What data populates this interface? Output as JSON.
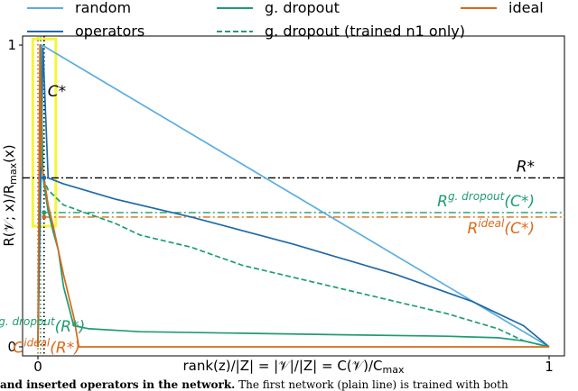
{
  "chart_data": {
    "type": "line",
    "xlabel": "rank(z)/|Ζ| = |𝒱|/|Ζ| = C(𝒱)/C",
    "xlabel_sub": "max",
    "ylabel": "R(𝒱; x)/R",
    "ylabel_sub": "max",
    "ylabel_tail": "(x)",
    "xlim": [
      -0.03,
      1.03
    ],
    "ylim": [
      -0.03,
      1.03
    ],
    "xticks": [
      {
        "value": 0,
        "label": "0"
      },
      {
        "value": 1,
        "label": "1"
      }
    ],
    "yticks": [
      {
        "value": 0,
        "label": "0"
      },
      {
        "value": 1,
        "label": "1"
      }
    ],
    "legend": {
      "placement": "top",
      "entries": [
        {
          "label": "random",
          "color": "#5aaee0",
          "style": "solid"
        },
        {
          "label": "g. dropout",
          "color": "#1e9c72",
          "style": "solid"
        },
        {
          "label": "ideal",
          "color": "#d9691a",
          "style": "solid"
        },
        {
          "label": "operators",
          "color": "#1f6aa8",
          "style": "solid"
        },
        {
          "label": "g. dropout (trained n1 only)",
          "color": "#1e9c72",
          "style": "dashed"
        }
      ]
    },
    "series": [
      {
        "name": "random",
        "color": "#5aaee0",
        "style": "solid",
        "x": [
          0.0,
          0.008,
          1.0
        ],
        "y": [
          0.0,
          1.0,
          0.0
        ]
      },
      {
        "name": "operators",
        "color": "#1f6aa8",
        "style": "solid",
        "x": [
          0.0,
          0.01,
          0.02,
          0.05,
          0.15,
          0.3,
          0.5,
          0.7,
          0.85,
          0.95,
          1.0
        ],
        "y": [
          0.0,
          0.99,
          0.56,
          0.54,
          0.49,
          0.43,
          0.34,
          0.24,
          0.15,
          0.07,
          0.0
        ]
      },
      {
        "name": "g. dropout (trained n1 only)",
        "color": "#1e9c72",
        "style": "dashed",
        "x": [
          0.01,
          0.02,
          0.05,
          0.1,
          0.15,
          0.2,
          0.25,
          0.3,
          0.35,
          0.4,
          0.5,
          0.6,
          0.7,
          0.8,
          0.9,
          0.95,
          1.0
        ],
        "y": [
          0.56,
          0.52,
          0.47,
          0.44,
          0.41,
          0.37,
          0.35,
          0.33,
          0.3,
          0.27,
          0.23,
          0.19,
          0.15,
          0.11,
          0.06,
          0.02,
          0.0
        ]
      },
      {
        "name": "g. dropout",
        "color": "#1e9c72",
        "style": "solid",
        "x": [
          0.0,
          0.005,
          0.01,
          0.02,
          0.03,
          0.04,
          0.05,
          0.07,
          0.1,
          0.2,
          0.4,
          0.6,
          0.8,
          0.9,
          0.95,
          1.0
        ],
        "y": [
          0.0,
          1.0,
          0.56,
          0.45,
          0.38,
          0.32,
          0.2,
          0.07,
          0.06,
          0.05,
          0.045,
          0.04,
          0.035,
          0.03,
          0.02,
          0.0
        ]
      },
      {
        "name": "ideal",
        "color": "#d9691a",
        "style": "solid",
        "x": [
          0.0,
          0.004,
          0.007,
          0.012,
          0.02,
          0.03,
          0.04,
          0.05,
          0.06,
          0.07,
          0.08,
          0.1,
          0.5,
          1.0
        ],
        "y": [
          0.0,
          1.0,
          0.6,
          0.56,
          0.47,
          0.4,
          0.32,
          0.24,
          0.17,
          0.1,
          0.0,
          0.0,
          0.0,
          0.0
        ]
      }
    ],
    "reference_lines": [
      {
        "orientation": "horizontal",
        "y": 0.56,
        "color": "#000000",
        "style": "dashdot",
        "label": "R*"
      },
      {
        "orientation": "horizontal",
        "y": 0.445,
        "color": "#1e9c72",
        "style": "dashdot",
        "label": "R",
        "label_sup": "g. dropout",
        "label_tail": "(C*)"
      },
      {
        "orientation": "horizontal",
        "y": 0.43,
        "color": "#d9691a",
        "style": "dashdot",
        "label": "R",
        "label_sup": "ideal",
        "label_tail": "(C*)"
      },
      {
        "orientation": "vertical",
        "x": 0.012,
        "color": "#000000",
        "style": "dotted",
        "label": "C*"
      },
      {
        "orientation": "vertical",
        "x": 0.005,
        "color": "#1e9c72",
        "style": "dotted"
      },
      {
        "orientation": "vertical",
        "x": 0.0,
        "color": "#d9691a",
        "style": "dotted"
      }
    ],
    "annotations": [
      {
        "text": "C",
        "sup": "g. dropout",
        "tail": "(R*)",
        "color": "#1e9c72",
        "x": 0.05,
        "y": 0.05
      },
      {
        "text": "C",
        "sup": "ideal",
        "tail": "(R*)",
        "color": "#d9691a",
        "x": 0.07,
        "y": -0.02
      }
    ],
    "highlight": {
      "color": "#f5f53a",
      "x": [
        -0.01,
        0.035
      ],
      "y": [
        0.4,
        1.02
      ]
    },
    "markers": [
      {
        "x": 0.012,
        "y": 0.56,
        "color": "#1f6aa8"
      },
      {
        "x": 0.012,
        "y": 0.445,
        "color": "#1e9c72"
      },
      {
        "x": 0.012,
        "y": 0.43,
        "color": "#d9691a"
      }
    ]
  },
  "caption": {
    "bold": "and inserted operators in the network.",
    "rest": " The first network (plain line) is trained with both "
  }
}
